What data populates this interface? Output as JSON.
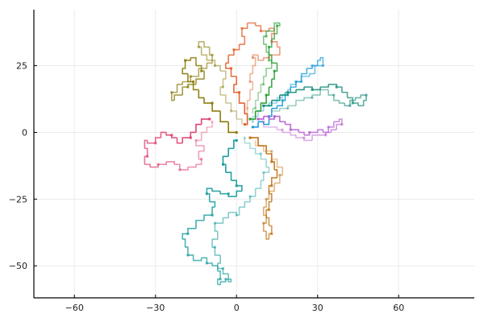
{
  "chart_data": {
    "type": "line",
    "title": "",
    "xlabel": "",
    "ylabel": "",
    "xlim": [
      -75,
      88
    ],
    "ylim": [
      -62,
      46
    ],
    "xticks": [
      -60,
      -30,
      0,
      30,
      60
    ],
    "yticks": [
      -50,
      -25,
      0,
      25
    ],
    "xtick_labels": [
      "−60",
      "−30",
      "0",
      "30",
      "60"
    ],
    "ytick_labels": [
      "−50",
      "−25",
      "0",
      "25"
    ],
    "grid": true,
    "legend": "none",
    "series": [
      {
        "color": "#1f9bd9",
        "points": [
          [
            6,
            2
          ],
          [
            8,
            4
          ],
          [
            10,
            3
          ],
          [
            12,
            6
          ],
          [
            13,
            9
          ],
          [
            15,
            10
          ],
          [
            17,
            12
          ],
          [
            18,
            15
          ],
          [
            20,
            17
          ],
          [
            22,
            19
          ],
          [
            24,
            22
          ],
          [
            26,
            24
          ],
          [
            28,
            25
          ],
          [
            30,
            27
          ],
          [
            31,
            28
          ],
          [
            32,
            25
          ],
          [
            29,
            22
          ],
          [
            27,
            21
          ],
          [
            24,
            19
          ],
          [
            22,
            18
          ],
          [
            20,
            16
          ],
          [
            19,
            14
          ],
          [
            17,
            13
          ],
          [
            15,
            11
          ],
          [
            12,
            10
          ],
          [
            10,
            8
          ],
          [
            8,
            6
          ],
          [
            6,
            4
          ]
        ]
      },
      {
        "color": "#e2612d",
        "points": [
          [
            3,
            3
          ],
          [
            4,
            7
          ],
          [
            3,
            11
          ],
          [
            1,
            15
          ],
          [
            -1,
            18
          ],
          [
            0,
            21
          ],
          [
            -2,
            24
          ],
          [
            -4,
            26
          ],
          [
            -3,
            29
          ],
          [
            -1,
            31
          ],
          [
            1,
            33
          ],
          [
            3,
            36
          ],
          [
            2,
            39
          ],
          [
            4,
            41
          ],
          [
            7,
            40
          ],
          [
            9,
            38
          ],
          [
            12,
            39
          ],
          [
            14,
            37
          ],
          [
            13,
            34
          ],
          [
            15,
            32
          ],
          [
            16,
            29
          ],
          [
            12,
            28
          ],
          [
            10,
            27
          ],
          [
            8,
            29
          ],
          [
            6,
            28
          ],
          [
            7,
            25
          ],
          [
            6,
            22
          ],
          [
            5,
            19
          ],
          [
            6,
            16
          ],
          [
            5,
            12
          ],
          [
            4,
            9
          ],
          [
            4,
            6
          ]
        ]
      },
      {
        "color": "#2a9d34",
        "points": [
          [
            5,
            5
          ],
          [
            7,
            8
          ],
          [
            9,
            11
          ],
          [
            11,
            14
          ],
          [
            12,
            17
          ],
          [
            13,
            20
          ],
          [
            14,
            23
          ],
          [
            15,
            26
          ],
          [
            13,
            29
          ],
          [
            12,
            32
          ],
          [
            13,
            35
          ],
          [
            14,
            37
          ],
          [
            15,
            40
          ],
          [
            16,
            41
          ],
          [
            14,
            38
          ],
          [
            11,
            36
          ],
          [
            10,
            33
          ],
          [
            11,
            30
          ],
          [
            12,
            27
          ],
          [
            13,
            24
          ],
          [
            11,
            21
          ],
          [
            10,
            18
          ],
          [
            9,
            15
          ],
          [
            8,
            12
          ],
          [
            7,
            9
          ],
          [
            6,
            7
          ]
        ]
      },
      {
        "color": "#b85fd3",
        "points": [
          [
            8,
            5
          ],
          [
            10,
            6
          ],
          [
            12,
            5
          ],
          [
            14,
            6
          ],
          [
            16,
            4
          ],
          [
            18,
            3
          ],
          [
            20,
            1
          ],
          [
            23,
            0
          ],
          [
            25,
            -1
          ],
          [
            27,
            0
          ],
          [
            30,
            1
          ],
          [
            32,
            0
          ],
          [
            34,
            2
          ],
          [
            36,
            4
          ],
          [
            38,
            5
          ],
          [
            39,
            3
          ],
          [
            37,
            1
          ],
          [
            35,
            0
          ],
          [
            33,
            -1
          ],
          [
            30,
            -1
          ],
          [
            28,
            -3
          ],
          [
            25,
            -2
          ],
          [
            22,
            -1
          ],
          [
            20,
            0
          ],
          [
            17,
            1
          ],
          [
            15,
            2
          ],
          [
            12,
            2
          ],
          [
            10,
            4
          ]
        ]
      },
      {
        "color": "#1a8f7a",
        "points": [
          [
            10,
            10
          ],
          [
            13,
            12
          ],
          [
            16,
            14
          ],
          [
            19,
            15
          ],
          [
            22,
            16
          ],
          [
            25,
            17
          ],
          [
            28,
            16
          ],
          [
            31,
            17
          ],
          [
            34,
            18
          ],
          [
            37,
            17
          ],
          [
            39,
            15
          ],
          [
            41,
            13
          ],
          [
            43,
            11
          ],
          [
            45,
            10
          ],
          [
            47,
            12
          ],
          [
            48,
            14
          ],
          [
            46,
            13
          ],
          [
            44,
            12
          ],
          [
            42,
            10
          ],
          [
            40,
            11
          ],
          [
            38,
            12
          ],
          [
            36,
            14
          ],
          [
            34,
            16
          ],
          [
            31,
            14
          ],
          [
            28,
            13
          ],
          [
            25,
            12
          ],
          [
            22,
            10
          ],
          [
            19,
            9
          ],
          [
            16,
            8
          ],
          [
            13,
            8
          ]
        ]
      },
      {
        "color": "#8a7a0a",
        "points": [
          [
            0,
            0
          ],
          [
            -3,
            4
          ],
          [
            -6,
            8
          ],
          [
            -9,
            11
          ],
          [
            -12,
            13
          ],
          [
            -14,
            16
          ],
          [
            -16,
            19
          ],
          [
            -18,
            22
          ],
          [
            -20,
            24
          ],
          [
            -19,
            27
          ],
          [
            -17,
            28
          ],
          [
            -15,
            25
          ],
          [
            -13,
            23
          ],
          [
            -12,
            20
          ],
          [
            -15,
            18
          ],
          [
            -18,
            17
          ],
          [
            -20,
            14
          ],
          [
            -23,
            12
          ],
          [
            -24,
            15
          ],
          [
            -22,
            18
          ],
          [
            -20,
            19
          ],
          [
            -17,
            21
          ],
          [
            -14,
            24
          ],
          [
            -11,
            26
          ],
          [
            -9,
            29
          ],
          [
            -10,
            32
          ],
          [
            -12,
            34
          ],
          [
            -14,
            32
          ],
          [
            -13,
            29
          ],
          [
            -11,
            27
          ],
          [
            -8,
            25
          ],
          [
            -6,
            23
          ],
          [
            -4,
            20
          ],
          [
            -5,
            17
          ],
          [
            -6,
            14
          ],
          [
            -4,
            11
          ],
          [
            -2,
            8
          ],
          [
            0,
            5
          ],
          [
            2,
            3
          ]
        ]
      },
      {
        "color": "#e0406f",
        "points": [
          [
            -10,
            5
          ],
          [
            -13,
            3
          ],
          [
            -15,
            0
          ],
          [
            -17,
            -2
          ],
          [
            -20,
            -4
          ],
          [
            -22,
            -2
          ],
          [
            -24,
            -1
          ],
          [
            -26,
            0
          ],
          [
            -28,
            -2
          ],
          [
            -30,
            -4
          ],
          [
            -33,
            -3
          ],
          [
            -34,
            -6
          ],
          [
            -33,
            -9
          ],
          [
            -34,
            -12
          ],
          [
            -32,
            -13
          ],
          [
            -29,
            -12
          ],
          [
            -26,
            -11
          ],
          [
            -23,
            -12
          ],
          [
            -21,
            -14
          ],
          [
            -18,
            -13
          ],
          [
            -15,
            -12
          ],
          [
            -13,
            -10
          ],
          [
            -14,
            -7
          ],
          [
            -12,
            -5
          ],
          [
            -15,
            -3
          ],
          [
            -13,
            0
          ],
          [
            -11,
            2
          ],
          [
            -9,
            4
          ]
        ]
      },
      {
        "color": "#1b9d9d",
        "points": [
          [
            0,
            -3
          ],
          [
            -1,
            -6
          ],
          [
            -3,
            -9
          ],
          [
            -5,
            -12
          ],
          [
            -4,
            -15
          ],
          [
            -2,
            -18
          ],
          [
            0,
            -20
          ],
          [
            2,
            -22
          ],
          [
            0,
            -24
          ],
          [
            -3,
            -23
          ],
          [
            -6,
            -22
          ],
          [
            -9,
            -21
          ],
          [
            -11,
            -23
          ],
          [
            -10,
            -26
          ],
          [
            -8,
            -28
          ],
          [
            -9,
            -31
          ],
          [
            -12,
            -33
          ],
          [
            -15,
            -36
          ],
          [
            -18,
            -38
          ],
          [
            -20,
            -40
          ],
          [
            -19,
            -43
          ],
          [
            -18,
            -46
          ],
          [
            -16,
            -48
          ],
          [
            -13,
            -47
          ],
          [
            -11,
            -49
          ],
          [
            -9,
            -50
          ],
          [
            -7,
            -52
          ],
          [
            -6,
            -55
          ],
          [
            -7,
            -57
          ],
          [
            -6,
            -56
          ],
          [
            -4,
            -55
          ],
          [
            -2,
            -56
          ],
          [
            -3,
            -53
          ],
          [
            -5,
            -51
          ],
          [
            -7,
            -49
          ],
          [
            -6,
            -46
          ],
          [
            -8,
            -43
          ],
          [
            -9,
            -40
          ],
          [
            -7,
            -37
          ],
          [
            -8,
            -34
          ],
          [
            -5,
            -32
          ],
          [
            -3,
            -30
          ],
          [
            0,
            -31
          ],
          [
            1,
            -28
          ],
          [
            3,
            -26
          ],
          [
            5,
            -24
          ],
          [
            7,
            -21
          ],
          [
            9,
            -18
          ],
          [
            10,
            -15
          ],
          [
            12,
            -13
          ],
          [
            11,
            -10
          ],
          [
            9,
            -8
          ],
          [
            7,
            -6
          ],
          [
            5,
            -4
          ],
          [
            3,
            -2
          ]
        ]
      },
      {
        "color": "#c07416",
        "points": [
          [
            5,
            -2
          ],
          [
            8,
            -5
          ],
          [
            11,
            -8
          ],
          [
            13,
            -11
          ],
          [
            14,
            -14
          ],
          [
            15,
            -17
          ],
          [
            13,
            -20
          ],
          [
            12,
            -23
          ],
          [
            13,
            -26
          ],
          [
            12,
            -29
          ],
          [
            11,
            -32
          ],
          [
            12,
            -35
          ],
          [
            13,
            -38
          ],
          [
            12,
            -40
          ],
          [
            11,
            -37
          ],
          [
            10,
            -34
          ],
          [
            11,
            -31
          ],
          [
            10,
            -28
          ],
          [
            11,
            -25
          ],
          [
            12,
            -22
          ],
          [
            14,
            -19
          ],
          [
            16,
            -16
          ],
          [
            17,
            -13
          ],
          [
            15,
            -10
          ],
          [
            13,
            -7
          ],
          [
            10,
            -5
          ],
          [
            7,
            -3
          ]
        ]
      }
    ]
  }
}
